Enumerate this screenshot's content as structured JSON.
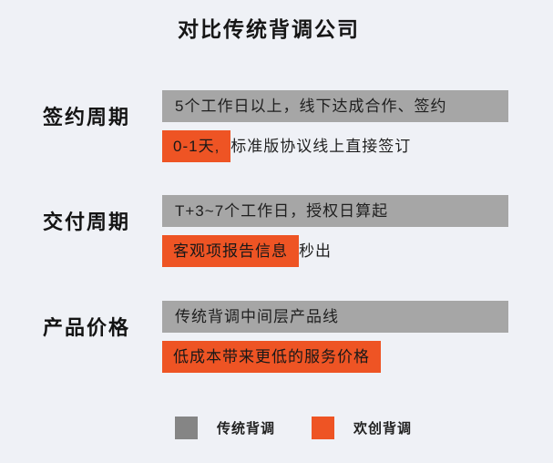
{
  "title": "对比传统背调公司",
  "chart_data": {
    "type": "table",
    "title": "对比传统背调公司",
    "legend_position": "bottom",
    "categories": [
      "签约周期",
      "交付周期",
      "产品价格"
    ],
    "series": [
      {
        "name": "传统背调",
        "values": [
          "5个工作日以上，线下达成合作、签约",
          "T+3~7个工作日，授权日算起",
          "传统背调中间层产品线"
        ]
      },
      {
        "name": "欢创背调",
        "values": [
          "0-1天, 标准版协议线上直接签订",
          "客观项报告信息 秒出",
          "低成本带来更低的服务价格"
        ]
      }
    ]
  },
  "rows": [
    {
      "label": "签约周期",
      "traditional": "5个工作日以上，线下达成合作、签约",
      "highlight": "0-1天,",
      "after": "标准版协议线上直接签订"
    },
    {
      "label": "交付周期",
      "traditional": "T+3~7个工作日，授权日算起",
      "highlight": "客观项报告信息",
      "after": "秒出"
    },
    {
      "label": "产品价格",
      "traditional": "传统背调中间层产品线",
      "highlight": "低成本带来更低的服务价格",
      "after": ""
    }
  ],
  "legend": [
    {
      "label": "传统背调",
      "color": "#858585"
    },
    {
      "label": "欢创背调",
      "color": "#ee5424"
    }
  ],
  "colors": {
    "background": "#eff1f6",
    "traditional_bar": "#a6a6a6",
    "ours_highlight": "#ee5424",
    "text": "#1c1c1c"
  }
}
